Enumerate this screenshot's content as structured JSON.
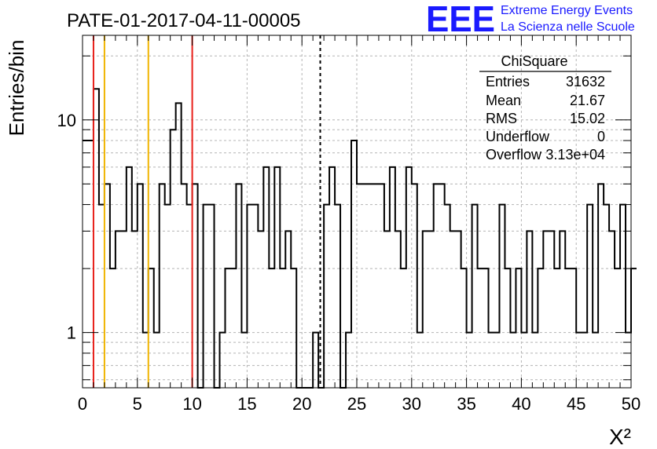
{
  "title": "PATE-01-2017-04-11-00005",
  "logo": {
    "mark": "EEE",
    "line1": "Extreme Energy Events",
    "line2": "La Scienza nelle Scuole"
  },
  "chart_data": {
    "type": "histogram",
    "title": "PATE-01-2017-04-11-00005",
    "xlabel": "X²",
    "ylabel": "Entries/bin",
    "xlim": [
      0,
      50
    ],
    "ylim": [
      0.55,
      25
    ],
    "yscale": "log",
    "bin_width": 0.5,
    "grid": true,
    "x_ticks": [
      0,
      5,
      10,
      15,
      20,
      25,
      30,
      35,
      40,
      45,
      50
    ],
    "y_tick_labels": [
      1,
      10
    ],
    "values": [
      8,
      8,
      14,
      4,
      5,
      2,
      3,
      3,
      6,
      3,
      5,
      1,
      2,
      1,
      5,
      4,
      9,
      12,
      5,
      4,
      5,
      0,
      4,
      4,
      0,
      1,
      2,
      2,
      5,
      1,
      4,
      4,
      3,
      6,
      2,
      6,
      2,
      3,
      2,
      0,
      0,
      0,
      1,
      0,
      4,
      6,
      4,
      0,
      1,
      8,
      5,
      5,
      5,
      5,
      5,
      3,
      6,
      3,
      2,
      6,
      5,
      1,
      3,
      3,
      5,
      5,
      4,
      3,
      3,
      2,
      1,
      4,
      2,
      2,
      1,
      1,
      4,
      2,
      1,
      2,
      1,
      3,
      1,
      2,
      3,
      3,
      2,
      3,
      2,
      2,
      1,
      1,
      4,
      1,
      5,
      4,
      3,
      2,
      4,
      1,
      2
    ],
    "vertical_lines": [
      {
        "x": 1,
        "color": "#e8201a",
        "style": "solid"
      },
      {
        "x": 2,
        "color": "#f0b400",
        "style": "solid"
      },
      {
        "x": 6,
        "color": "#f0b400",
        "style": "solid"
      },
      {
        "x": 10,
        "color": "#e8201a",
        "style": "solid"
      },
      {
        "x": 21.67,
        "color": "#000000",
        "style": "dashed"
      }
    ],
    "stats_box": {
      "title": "ChiSquare",
      "rows": [
        {
          "label": "Entries",
          "value": "31632"
        },
        {
          "label": "Mean",
          "value": "21.67"
        },
        {
          "label": "RMS",
          "value": "15.02"
        },
        {
          "label": "Underflow",
          "value": "0"
        },
        {
          "label": "Overflow",
          "value": "3.13e+04"
        }
      ]
    }
  }
}
